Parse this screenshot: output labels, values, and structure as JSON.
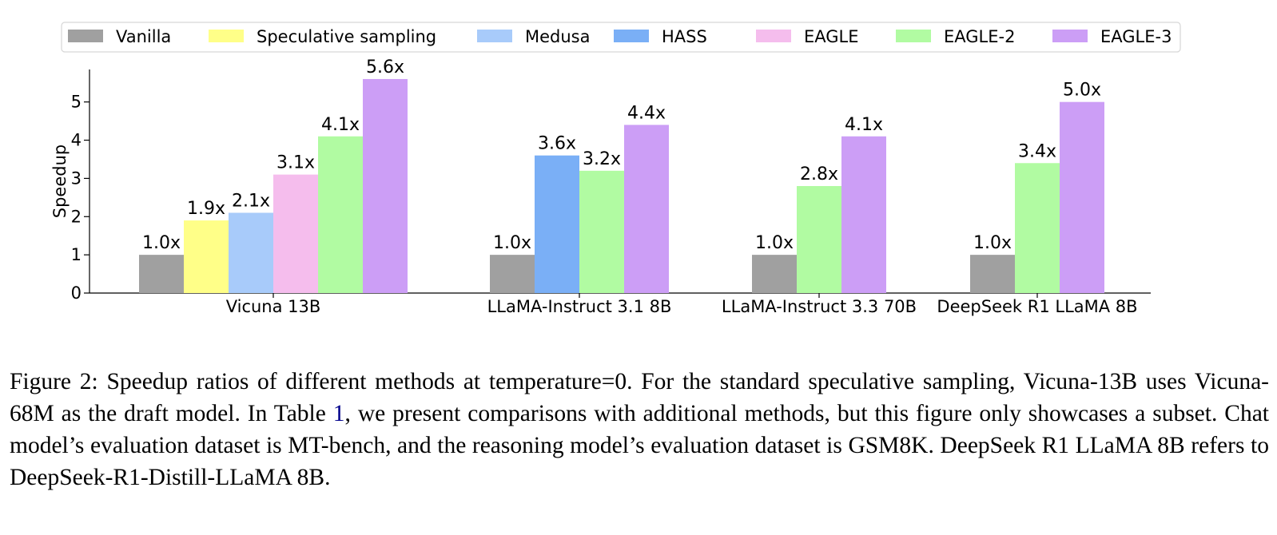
{
  "chart_data": {
    "type": "bar",
    "title": "",
    "xlabel": "",
    "ylabel": "Speedup",
    "ylim": [
      0,
      5.85
    ],
    "yticks": [
      0,
      1,
      2,
      3,
      4,
      5
    ],
    "grid": false,
    "legend_position": "top",
    "methods": [
      {
        "name": "Vanilla",
        "color": "#a0a0a0"
      },
      {
        "name": "Speculative sampling",
        "color": "#ffff88"
      },
      {
        "name": "Medusa",
        "color": "#a8cbfa"
      },
      {
        "name": "HASS",
        "color": "#7aaff6"
      },
      {
        "name": "EAGLE",
        "color": "#f5bded"
      },
      {
        "name": "EAGLE-2",
        "color": "#b1fba2"
      },
      {
        "name": "EAGLE-3",
        "color": "#cc9ef6"
      }
    ],
    "groups": [
      {
        "label": "Vicuna 13B",
        "bars": [
          {
            "method": "Vanilla",
            "value": 1.0,
            "label": "1.0x"
          },
          {
            "method": "Speculative sampling",
            "value": 1.9,
            "label": "1.9x"
          },
          {
            "method": "Medusa",
            "value": 2.1,
            "label": "2.1x"
          },
          {
            "method": "EAGLE",
            "value": 3.1,
            "label": "3.1x"
          },
          {
            "method": "EAGLE-2",
            "value": 4.1,
            "label": "4.1x"
          },
          {
            "method": "EAGLE-3",
            "value": 5.6,
            "label": "5.6x"
          }
        ]
      },
      {
        "label": "LLaMA-Instruct 3.1 8B",
        "bars": [
          {
            "method": "Vanilla",
            "value": 1.0,
            "label": "1.0x"
          },
          {
            "method": "HASS",
            "value": 3.6,
            "label": "3.6x"
          },
          {
            "method": "EAGLE-2",
            "value": 3.2,
            "label": "3.2x"
          },
          {
            "method": "EAGLE-3",
            "value": 4.4,
            "label": "4.4x"
          }
        ]
      },
      {
        "label": "LLaMA-Instruct 3.3 70B",
        "bars": [
          {
            "method": "Vanilla",
            "value": 1.0,
            "label": "1.0x"
          },
          {
            "method": "EAGLE-2",
            "value": 2.8,
            "label": "2.8x"
          },
          {
            "method": "EAGLE-3",
            "value": 4.1,
            "label": "4.1x"
          }
        ]
      },
      {
        "label": "DeepSeek R1 LLaMA 8B",
        "bars": [
          {
            "method": "Vanilla",
            "value": 1.0,
            "label": "1.0x"
          },
          {
            "method": "EAGLE-2",
            "value": 3.4,
            "label": "3.4x"
          },
          {
            "method": "EAGLE-3",
            "value": 5.0,
            "label": "5.0x"
          }
        ]
      }
    ]
  },
  "caption": {
    "before_ref": "Figure 2: Speedup ratios of different methods at temperature=0. For the standard speculative sampling, Vicuna-13B uses Vicuna-68M as the draft model. In Table ",
    "ref": "1",
    "after_ref": ", we present comparisons with additional methods, but this figure only showcases a subset. Chat model’s evaluation dataset is MT-bench, and the reasoning model’s evaluation dataset is GSM8K. DeepSeek R1 LLaMA 8B refers to DeepSeek-R1-Distill-LLaMA 8B."
  }
}
